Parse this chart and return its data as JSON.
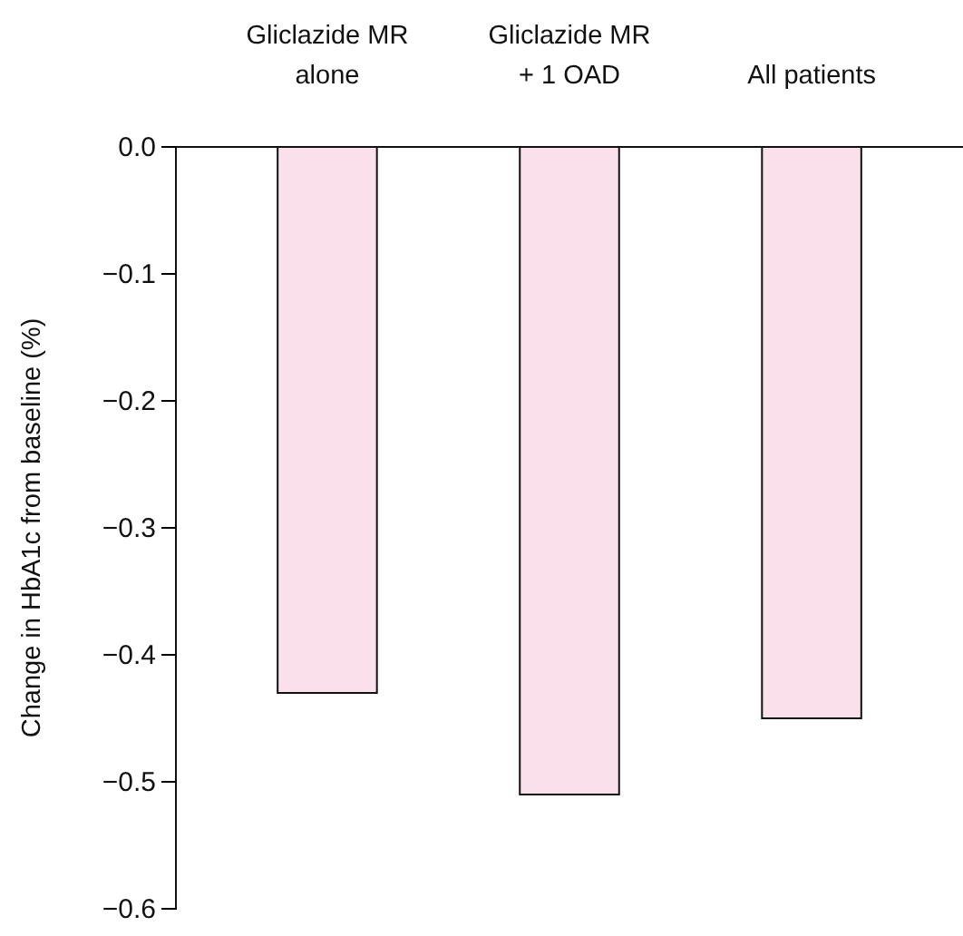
{
  "chart_data": {
    "type": "bar",
    "ylabel": "Change in HbA1c from baseline (%)",
    "categories": [
      "Gliclazide MR\nalone",
      "Gliclazide MR\n+ 1 OAD",
      "All patients"
    ],
    "values": [
      -0.43,
      -0.51,
      -0.45
    ],
    "color": "#fae0ea",
    "ylim": [
      -0.6,
      0
    ],
    "yticks": [
      {
        "value": 0,
        "label": "0.0"
      },
      {
        "value": -0.1,
        "label": "−0.1"
      },
      {
        "value": -0.2,
        "label": "−0.2"
      },
      {
        "value": -0.3,
        "label": "−0.3"
      },
      {
        "value": -0.4,
        "label": "−0.4"
      },
      {
        "value": -0.5,
        "label": "−0.5"
      },
      {
        "value": -0.6,
        "label": "−0.6"
      }
    ],
    "grid": false
  }
}
